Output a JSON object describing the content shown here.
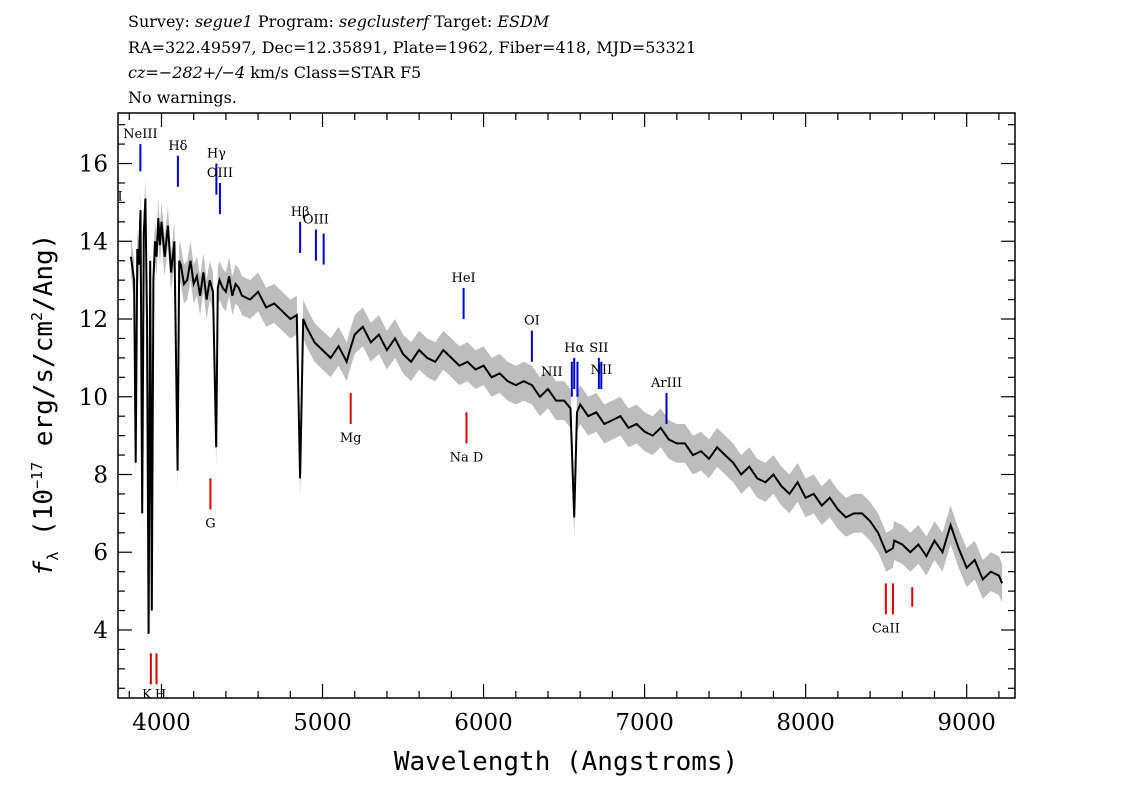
{
  "header": {
    "line1": {
      "survey_label": "Survey: ",
      "survey": "segue1",
      "program_label": " Program: ",
      "program": "segclusterf",
      "target_label": " Target: ",
      "target": "ESDM"
    },
    "line2": "RA=322.49597, Dec=12.35891, Plate=1962, Fiber=418, MJD=53321",
    "line3": {
      "cz_label": "cz=",
      "cz": "−282+/−4",
      "rest": " km/s Class=STAR F5"
    },
    "line4": "No warnings."
  },
  "colors": {
    "spectrum": "#000000",
    "error_band": "#bdbdbd",
    "emission_marker": "#0000cc",
    "absorption_marker": "#dd0000"
  },
  "chart_data": {
    "type": "line",
    "title": "",
    "xlabel": "Wavelength (Angstroms)",
    "ylabel": {
      "prefix": "f",
      "sub": "λ",
      "unit_a": " (10",
      "exp": "−17",
      "unit_b": " erg/s/cm",
      "exp2": "2",
      "unit_c": "/Ang)"
    },
    "xlim": [
      3730,
      9300
    ],
    "ylim": [
      2.25,
      17.3
    ],
    "x_ticks": [
      4000,
      5000,
      6000,
      7000,
      8000,
      9000
    ],
    "y_ticks": [
      4,
      6,
      8,
      10,
      12,
      14,
      16
    ],
    "grid": false,
    "legend": "none",
    "series": [
      {
        "x": [
          3810,
          3830,
          3840,
          3850,
          3860,
          3870,
          3880,
          3890,
          3900,
          3910,
          3920,
          3930,
          3940,
          3950,
          3960,
          3970,
          3980,
          3990,
          4000,
          4020,
          4040,
          4060,
          4080,
          4100,
          4110,
          4120,
          4140,
          4160,
          4180,
          4200,
          4220,
          4240,
          4260,
          4280,
          4300,
          4320,
          4340,
          4350,
          4360,
          4380,
          4400,
          4420,
          4440,
          4460,
          4480,
          4500,
          4550,
          4600,
          4650,
          4700,
          4750,
          4800,
          4840,
          4861,
          4880,
          4900,
          4950,
          5000,
          5050,
          5100,
          5150,
          5170,
          5200,
          5250,
          5300,
          5350,
          5400,
          5450,
          5500,
          5550,
          5600,
          5650,
          5700,
          5750,
          5800,
          5850,
          5900,
          5950,
          6000,
          6050,
          6100,
          6150,
          6200,
          6250,
          6300,
          6350,
          6400,
          6450,
          6500,
          6540,
          6563,
          6580,
          6600,
          6650,
          6700,
          6750,
          6800,
          6850,
          6900,
          6950,
          7000,
          7050,
          7100,
          7150,
          7200,
          7250,
          7300,
          7350,
          7400,
          7450,
          7500,
          7550,
          7600,
          7650,
          7700,
          7750,
          7800,
          7850,
          7900,
          7950,
          8000,
          8050,
          8100,
          8150,
          8200,
          8250,
          8300,
          8350,
          8400,
          8450,
          8500,
          8542,
          8550,
          8600,
          8650,
          8700,
          8750,
          8800,
          8850,
          8900,
          8950,
          9000,
          9050,
          9100,
          9150,
          9200,
          9220
        ],
        "values": [
          13.6,
          13.0,
          8.3,
          13.8,
          13.4,
          14.8,
          7.0,
          14.2,
          15.1,
          12.0,
          3.9,
          13.5,
          4.5,
          13.0,
          14.0,
          13.6,
          14.6,
          13.9,
          14.5,
          13.6,
          14.4,
          13.2,
          14.0,
          8.1,
          13.5,
          13.4,
          12.9,
          13.0,
          13.5,
          12.9,
          13.1,
          12.6,
          13.2,
          12.5,
          13.0,
          12.7,
          8.7,
          12.8,
          13.0,
          12.8,
          12.7,
          13.1,
          12.6,
          12.9,
          12.8,
          12.6,
          12.5,
          12.7,
          12.3,
          12.4,
          12.2,
          12.0,
          12.1,
          7.9,
          12.0,
          11.8,
          11.4,
          11.2,
          11.0,
          11.3,
          10.9,
          11.2,
          11.6,
          11.8,
          11.4,
          11.6,
          11.2,
          11.5,
          11.1,
          10.9,
          11.2,
          11.0,
          10.9,
          11.2,
          11.0,
          10.8,
          10.9,
          10.7,
          10.8,
          10.5,
          10.6,
          10.4,
          10.3,
          10.4,
          10.3,
          10.0,
          10.2,
          9.9,
          9.9,
          9.7,
          6.9,
          9.6,
          9.8,
          9.5,
          9.6,
          9.3,
          9.4,
          9.5,
          9.2,
          9.3,
          9.1,
          9.0,
          9.2,
          8.9,
          8.8,
          8.8,
          8.5,
          8.6,
          8.4,
          8.7,
          8.5,
          8.3,
          8.0,
          8.2,
          7.9,
          7.8,
          8.0,
          7.7,
          7.5,
          7.8,
          7.4,
          7.5,
          7.2,
          7.4,
          7.1,
          6.9,
          7.0,
          7.0,
          6.8,
          6.5,
          6.0,
          6.1,
          6.3,
          6.2,
          6.0,
          6.2,
          5.9,
          6.3,
          6.0,
          6.7,
          6.1,
          5.6,
          5.8,
          5.3,
          5.5,
          5.4,
          5.2
        ],
        "error_band": 0.5
      }
    ],
    "line_markers": [
      {
        "label": "NeIII",
        "wave": 3869,
        "y_top": 16.5,
        "y_bottom": 15.8,
        "color": "blue",
        "label_pos": "above"
      },
      {
        "label": "II",
        "wave": 3727,
        "y_top": 14.9,
        "y_bottom": 14.3,
        "color": "blue",
        "label_pos": "above"
      },
      {
        "label": "Hδ",
        "wave": 4102,
        "y_top": 16.2,
        "y_bottom": 15.4,
        "color": "blue",
        "label_pos": "above"
      },
      {
        "label": "Hγ",
        "wave": 4341,
        "y_top": 16.0,
        "y_bottom": 15.2,
        "color": "blue",
        "label_pos": "above"
      },
      {
        "label": "OIII",
        "wave": 4363,
        "y_top": 15.5,
        "y_bottom": 14.7,
        "color": "blue",
        "label_pos": "above"
      },
      {
        "label": "Hβ",
        "wave": 4861,
        "y_top": 14.5,
        "y_bottom": 13.7,
        "color": "blue",
        "label_pos": "above"
      },
      {
        "label": "OIII",
        "wave": 4959,
        "y_top": 14.3,
        "y_bottom": 13.5,
        "color": "blue",
        "label_pos": "above"
      },
      {
        "label": "",
        "wave": 5007,
        "y_top": 14.2,
        "y_bottom": 13.4,
        "color": "blue",
        "label_pos": "none"
      },
      {
        "label": "HeI",
        "wave": 5876,
        "y_top": 12.8,
        "y_bottom": 12.0,
        "color": "blue",
        "label_pos": "above"
      },
      {
        "label": "OI",
        "wave": 6300,
        "y_top": 11.7,
        "y_bottom": 10.9,
        "color": "blue",
        "label_pos": "above"
      },
      {
        "label": "NII",
        "wave": 6548,
        "y_top": 10.9,
        "y_bottom": 10.0,
        "color": "blue",
        "label_pos": "left"
      },
      {
        "label": "Hα",
        "wave": 6563,
        "y_top": 11.0,
        "y_bottom": 10.2,
        "color": "blue",
        "label_pos": "above"
      },
      {
        "label": "",
        "wave": 6583,
        "y_top": 10.9,
        "y_bottom": 10.0,
        "color": "blue",
        "label_pos": "none"
      },
      {
        "label": "SII",
        "wave": 6716,
        "y_top": 11.0,
        "y_bottom": 10.2,
        "color": "blue",
        "label_pos": "above"
      },
      {
        "label": "NII",
        "wave": 6731,
        "y_top": 10.9,
        "y_bottom": 10.2,
        "color": "blue",
        "label_pos": "below-label"
      },
      {
        "label": "ArIII",
        "wave": 7136,
        "y_top": 10.1,
        "y_bottom": 9.3,
        "color": "blue",
        "label_pos": "above"
      },
      {
        "label": "Mg",
        "wave": 5175,
        "y_top": 10.1,
        "y_bottom": 9.3,
        "color": "red",
        "label_pos": "below"
      },
      {
        "label": "Na D",
        "wave": 5894,
        "y_top": 9.6,
        "y_bottom": 8.8,
        "color": "red",
        "label_pos": "below"
      },
      {
        "label": "G",
        "wave": 4304,
        "y_top": 7.9,
        "y_bottom": 7.1,
        "color": "red",
        "label_pos": "below"
      },
      {
        "label": "CaII",
        "wave": 8498,
        "y_top": 5.2,
        "y_bottom": 4.4,
        "color": "red",
        "label_pos": "below"
      },
      {
        "label": "",
        "wave": 8542,
        "y_top": 5.2,
        "y_bottom": 4.4,
        "color": "red",
        "label_pos": "none"
      },
      {
        "label": "",
        "wave": 8662,
        "y_top": 5.1,
        "y_bottom": 4.6,
        "color": "red",
        "label_pos": "none"
      },
      {
        "label": "K",
        "wave": 3934,
        "y_top": 3.4,
        "y_bottom": 2.6,
        "color": "red",
        "label_pos": "below-left"
      },
      {
        "label": "H",
        "wave": 3969,
        "y_top": 3.4,
        "y_bottom": 2.6,
        "color": "red",
        "label_pos": "below-right"
      }
    ]
  }
}
